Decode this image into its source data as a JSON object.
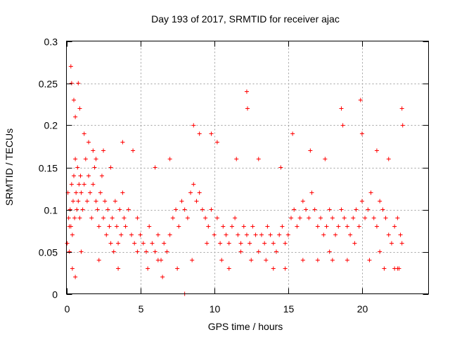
{
  "chart_data": {
    "type": "scatter",
    "title": "Day 193 of 2017, SRMTID for receiver ajac",
    "xlabel": "GPS time / hours",
    "ylabel": "SRMTID / TECUs",
    "xlim": [
      0,
      24.5
    ],
    "ylim": [
      0,
      0.3
    ],
    "xticks": [
      0,
      5,
      10,
      15,
      20
    ],
    "xtick_labels": [
      "0",
      "5",
      "10",
      "15",
      "20"
    ],
    "yticks": [
      0,
      0.05,
      0.1,
      0.15,
      0.2,
      0.25,
      0.3
    ],
    "ytick_labels": [
      "0",
      "0.05",
      "0.1",
      "0.15",
      "0.2",
      "0.25",
      "0.3"
    ],
    "grid": true,
    "marker": "+",
    "color": "#ff0000",
    "series": [
      {
        "name": "SRMTID",
        "x": [
          0.05,
          0.1,
          0.15,
          0.2,
          0.25,
          0.3,
          0.35,
          0.4,
          0.45,
          0.5,
          0.55,
          0.6,
          0.65,
          0.7,
          0.75,
          0.8,
          0.85,
          0.9,
          0.95,
          1.0,
          1.1,
          1.2,
          1.3,
          1.4,
          1.5,
          1.6,
          1.7,
          1.8,
          1.9,
          2.0,
          2.1,
          2.2,
          2.3,
          2.4,
          2.5,
          2.6,
          2.7,
          2.8,
          2.9,
          3.0,
          3.1,
          3.2,
          3.3,
          3.4,
          3.5,
          3.6,
          3.7,
          3.8,
          3.9,
          4.0,
          4.2,
          4.4,
          4.6,
          4.8,
          5.0,
          5.2,
          5.4,
          5.6,
          5.8,
          6.0,
          6.2,
          6.4,
          6.6,
          6.8,
          7.0,
          7.2,
          7.4,
          7.6,
          7.8,
          8.0,
          8.2,
          8.4,
          8.6,
          8.8,
          9.0,
          9.2,
          9.4,
          9.6,
          9.8,
          10.0,
          10.2,
          10.4,
          10.6,
          10.8,
          11.0,
          11.2,
          11.4,
          11.6,
          11.8,
          12.0,
          12.2,
          12.4,
          12.6,
          12.8,
          13.0,
          13.2,
          13.4,
          13.6,
          13.8,
          14.0,
          14.2,
          14.4,
          14.6,
          14.8,
          15.0,
          15.2,
          15.4,
          15.6,
          15.8,
          16.0,
          16.2,
          16.4,
          16.6,
          16.8,
          17.0,
          17.2,
          17.4,
          17.6,
          17.8,
          18.0,
          18.2,
          18.4,
          18.6,
          18.8,
          19.0,
          19.2,
          19.4,
          19.6,
          19.8,
          20.0,
          20.2,
          20.4,
          20.6,
          20.8,
          21.0,
          21.2,
          21.4,
          21.6,
          21.8,
          22.0,
          22.2,
          22.4,
          22.6,
          22.7,
          0.3,
          0.35,
          0.5,
          0.6,
          0.8,
          0.9,
          1.2,
          1.5,
          1.8,
          2.0,
          2.5,
          3.0,
          3.8,
          4.5,
          6.0,
          7.0,
          8.6,
          9.0,
          9.8,
          10.2,
          11.5,
          12.2,
          12.25,
          13.0,
          14.5,
          15.3,
          16.5,
          17.5,
          18.6,
          18.7,
          19.9,
          20.0,
          21.0,
          21.8,
          22.7,
          22.75,
          0.4,
          0.6,
          1.0,
          2.2,
          3.5,
          5.5,
          6.5,
          7.5,
          8.0,
          8.5,
          10.5,
          11.0,
          12.5,
          13.5,
          14.0,
          14.8,
          16.0,
          17.0,
          18.0,
          19.0,
          20.5,
          21.5,
          22.5,
          0.2,
          4.8,
          6.2,
          9.5,
          11.8,
          14.2,
          17.8,
          19.5,
          21.2,
          22.2,
          22.4
        ],
        "y": [
          0.06,
          0.12,
          0.09,
          0.05,
          0.1,
          0.08,
          0.13,
          0.07,
          0.11,
          0.14,
          0.09,
          0.16,
          0.12,
          0.1,
          0.15,
          0.11,
          0.13,
          0.09,
          0.14,
          0.12,
          0.1,
          0.13,
          0.16,
          0.11,
          0.14,
          0.12,
          0.09,
          0.13,
          0.15,
          0.11,
          0.1,
          0.08,
          0.12,
          0.14,
          0.09,
          0.11,
          0.07,
          0.1,
          0.08,
          0.06,
          0.09,
          0.05,
          0.11,
          0.08,
          0.06,
          0.1,
          0.07,
          0.12,
          0.09,
          0.08,
          0.1,
          0.07,
          0.06,
          0.09,
          0.07,
          0.06,
          0.05,
          0.08,
          0.06,
          0.05,
          0.07,
          0.04,
          0.06,
          0.05,
          0.07,
          0.09,
          0.1,
          0.08,
          0.11,
          0.1,
          0.09,
          0.12,
          0.13,
          0.11,
          0.12,
          0.1,
          0.09,
          0.08,
          0.1,
          0.07,
          0.09,
          0.06,
          0.08,
          0.07,
          0.06,
          0.08,
          0.09,
          0.07,
          0.06,
          0.08,
          0.07,
          0.06,
          0.08,
          0.07,
          0.05,
          0.07,
          0.06,
          0.08,
          0.07,
          0.06,
          0.05,
          0.07,
          0.08,
          0.06,
          0.07,
          0.09,
          0.1,
          0.08,
          0.09,
          0.11,
          0.1,
          0.09,
          0.12,
          0.1,
          0.08,
          0.09,
          0.07,
          0.08,
          0.1,
          0.09,
          0.07,
          0.08,
          0.1,
          0.09,
          0.08,
          0.07,
          0.09,
          0.1,
          0.08,
          0.11,
          0.09,
          0.1,
          0.12,
          0.09,
          0.08,
          0.11,
          0.1,
          0.09,
          0.07,
          0.06,
          0.08,
          0.09,
          0.07,
          0.06,
          0.27,
          0.25,
          0.23,
          0.21,
          0.25,
          0.22,
          0.19,
          0.18,
          0.17,
          0.16,
          0.17,
          0.15,
          0.18,
          0.17,
          0.15,
          0.16,
          0.2,
          0.19,
          0.19,
          0.18,
          0.16,
          0.24,
          0.22,
          0.16,
          0.15,
          0.19,
          0.17,
          0.16,
          0.22,
          0.2,
          0.23,
          0.19,
          0.17,
          0.16,
          0.22,
          0.2,
          0.03,
          0.02,
          0.05,
          0.04,
          0.03,
          0.03,
          0.02,
          0.03,
          0.0,
          0.04,
          0.04,
          0.03,
          0.04,
          0.04,
          0.03,
          0.03,
          0.04,
          0.04,
          0.04,
          0.04,
          0.04,
          0.03,
          0.03,
          0.08,
          0.05,
          0.04,
          0.06,
          0.05,
          0.05,
          0.05,
          0.06,
          0.05,
          0.03,
          0.03
        ]
      }
    ]
  }
}
